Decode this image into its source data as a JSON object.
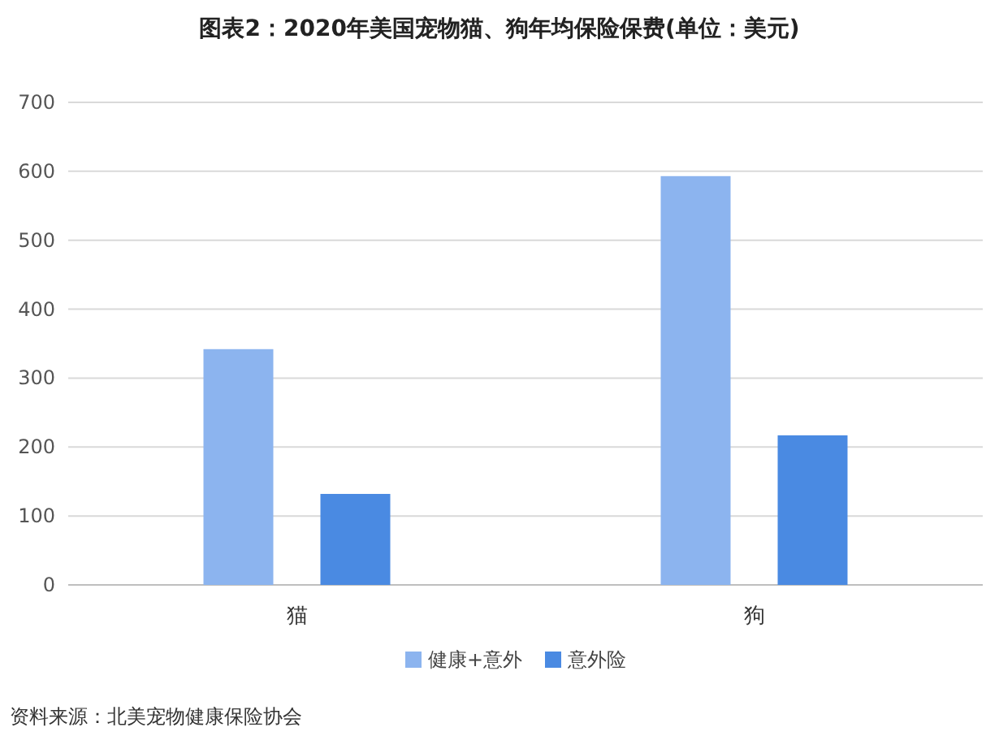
{
  "chart_data": {
    "type": "bar",
    "title": "图表2：2020年美国宠物猫、狗年均保险保费(单位：美元)",
    "categories": [
      "猫",
      "狗"
    ],
    "series": [
      {
        "name": "健康+意外",
        "color": "#8cb4ef",
        "values": [
          342,
          593
        ]
      },
      {
        "name": "意外险",
        "color": "#4a8ae2",
        "values": [
          132,
          217
        ]
      }
    ],
    "ylim": [
      0,
      700
    ],
    "yticks": [
      0,
      100,
      200,
      300,
      400,
      500,
      600,
      700
    ],
    "grid": "y",
    "legend": "bottom",
    "annotations": [
      "资料来源：北美宠物健康保险协会"
    ]
  }
}
